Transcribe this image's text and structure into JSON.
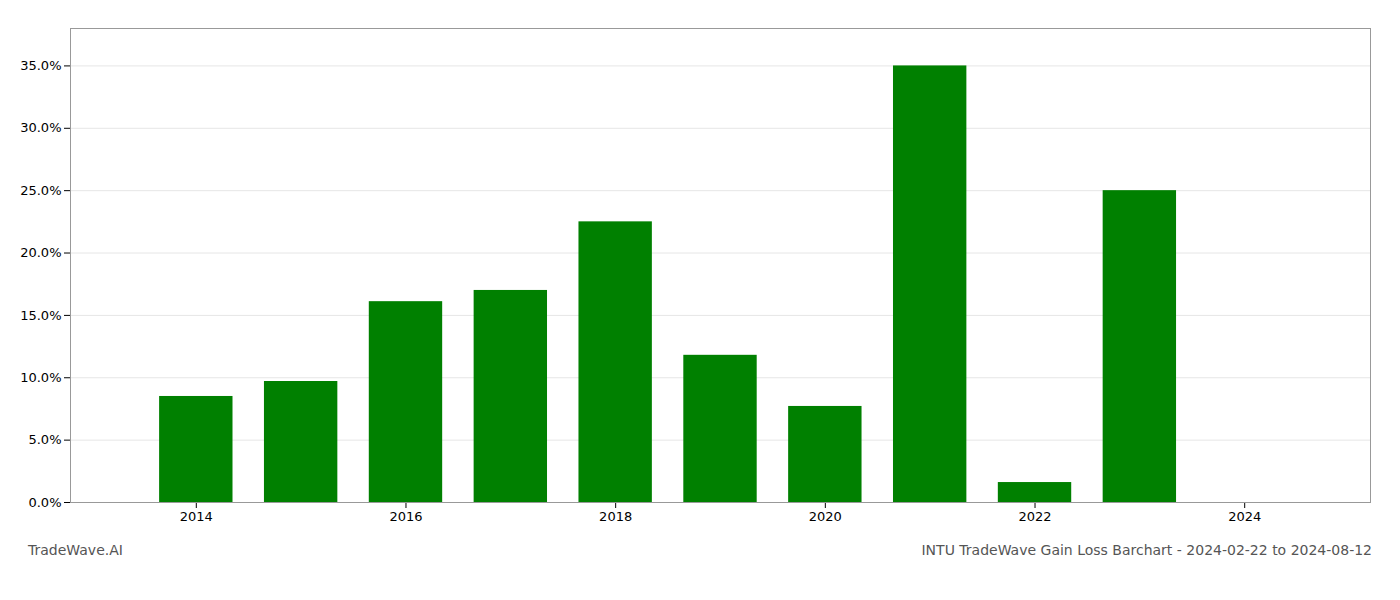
{
  "chart_data": {
    "type": "bar",
    "title": "INTU TradeWave Gain Loss Barchart - 2024-02-22 to 2024-08-12",
    "annotations": [
      "TradeWave.AI"
    ],
    "x": [
      2014,
      2015,
      2016,
      2017,
      2018,
      2019,
      2020,
      2021,
      2022,
      2023,
      2024
    ],
    "values": [
      0.085,
      0.097,
      0.161,
      0.17,
      0.225,
      0.118,
      0.077,
      0.35,
      0.016,
      0.25,
      0.0
    ],
    "color": "#008000",
    "xlim": [
      2012.8,
      2025.2
    ],
    "xticks": [
      2014,
      2016,
      2018,
      2020,
      2022,
      2024
    ],
    "ylim": [
      0,
      0.38
    ],
    "yticks": [
      {
        "value": 0.0,
        "label": "0.0%"
      },
      {
        "value": 0.05,
        "label": "5.0%"
      },
      {
        "value": 0.1,
        "label": "10.0%"
      },
      {
        "value": 0.15,
        "label": "15.0%"
      },
      {
        "value": 0.2,
        "label": "20.0%"
      },
      {
        "value": 0.25,
        "label": "25.0%"
      },
      {
        "value": 0.3,
        "label": "30.0%"
      },
      {
        "value": 0.35,
        "label": "35.0%"
      }
    ],
    "grid": true
  }
}
